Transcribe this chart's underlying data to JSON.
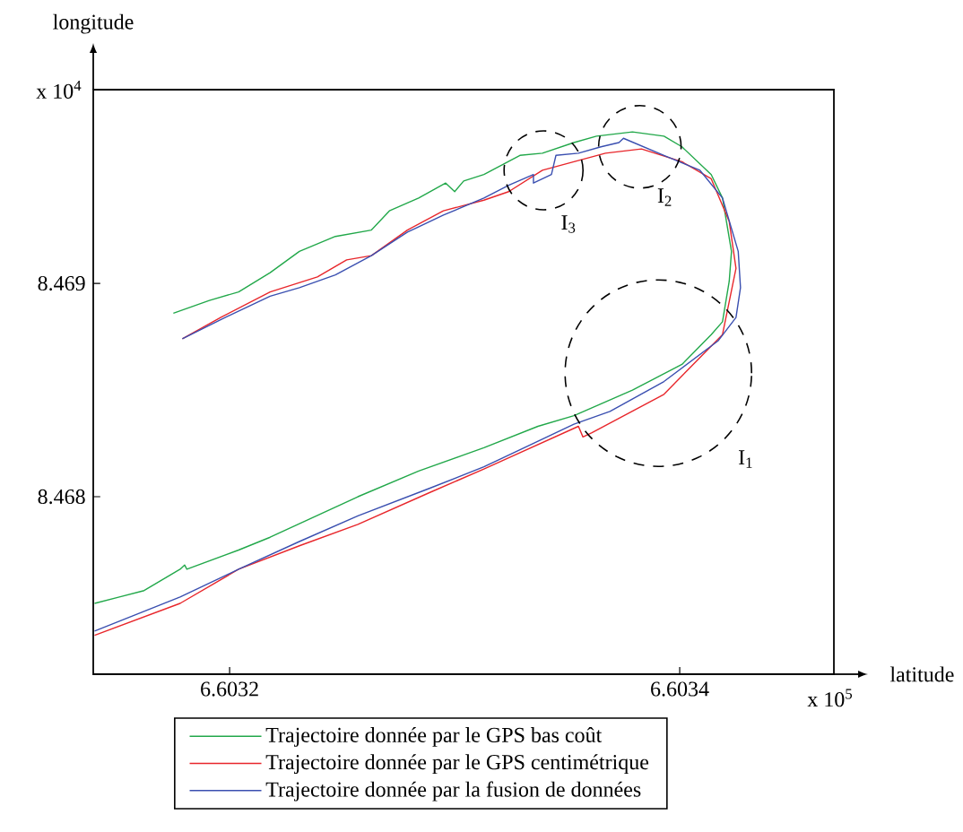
{
  "chart_data": {
    "type": "line",
    "xlabel": "latitude",
    "ylabel": "longitude",
    "xlim": [
      6.6031394,
      6.6034685
    ],
    "ylim": [
      8.467168,
      8.469908
    ],
    "xticks": [
      6.6032,
      6.6034
    ],
    "yticks": [
      8.468,
      8.469
    ],
    "legend": "bottom",
    "annotations": [
      "x 10$^{4}$",
      "x 10$^{5}$",
      "I$_{1}$",
      "I$_{2}$",
      "I$_{3}$"
    ],
    "series": [
      {
        "name": "Trajectoire donnée par le GPS bas coût",
        "color": "#22a84a",
        "x": [
          6.60314,
          6.603151,
          6.603162,
          6.603178,
          6.60318,
          6.603181,
          6.603204,
          6.603218,
          6.603257,
          6.603284,
          6.603313,
          6.603337,
          6.603353,
          6.603379,
          6.603401,
          6.603414,
          6.603419,
          6.603422,
          6.603423,
          6.603419,
          6.603414,
          6.603401,
          6.603393,
          6.603379,
          6.603363,
          6.603353,
          6.603339,
          6.603329,
          6.603313,
          6.603304,
          6.6033,
          6.603296,
          6.603284,
          6.603271,
          6.603263,
          6.603247,
          6.603231,
          6.603218,
          6.603204,
          6.603191,
          6.603175
        ],
        "values": [
          8.4675,
          8.46753,
          8.46756,
          8.46766,
          8.46768,
          8.46766,
          8.46775,
          8.46781,
          8.468,
          8.46812,
          8.46823,
          8.46833,
          8.46838,
          8.4685,
          8.46862,
          8.46876,
          8.46882,
          8.46901,
          8.46915,
          8.4694,
          8.46951,
          8.46964,
          8.46969,
          8.46971,
          8.46969,
          8.46966,
          8.46961,
          8.4696,
          8.46951,
          8.46948,
          8.46943,
          8.46947,
          8.4694,
          8.46934,
          8.46925,
          8.46922,
          8.46915,
          8.46905,
          8.46896,
          8.46892,
          8.46886
        ]
      },
      {
        "name": "Trajectoire donnée par le GPS centimétrique",
        "color": "#e8262b",
        "x": [
          6.60314,
          6.603178,
          6.603204,
          6.603231,
          6.603257,
          6.603289,
          6.603313,
          6.603355,
          6.603357,
          6.603361,
          6.603393,
          6.603419,
          6.603425,
          6.603422,
          6.603414,
          6.603401,
          6.603383,
          6.603367,
          6.603353,
          6.603339,
          6.603324,
          6.603313,
          6.603295,
          6.603279,
          6.603263,
          6.603252,
          6.603239,
          6.603218,
          6.603196,
          6.603179
        ],
        "values": [
          8.46735,
          8.4675,
          8.46766,
          8.46777,
          8.46787,
          8.46802,
          8.46813,
          8.46833,
          8.46828,
          8.4683,
          8.46848,
          8.46876,
          8.46907,
          8.46929,
          8.46949,
          8.46957,
          8.46963,
          8.46961,
          8.46957,
          8.46953,
          8.46943,
          8.46939,
          8.46934,
          8.46925,
          8.46913,
          8.46911,
          8.46903,
          8.46896,
          8.46884,
          8.46874
        ]
      },
      {
        "name": "Trajectoire donnée par la fusion de données",
        "color": "#3a4fb0",
        "x": [
          6.60314,
          6.603178,
          6.603204,
          6.603231,
          6.603257,
          6.603289,
          6.603313,
          6.603353,
          6.603369,
          6.603393,
          6.603417,
          6.603425,
          6.603427,
          6.603426,
          6.603419,
          6.603409,
          6.603393,
          6.603375,
          6.603373,
          6.603365,
          6.603355,
          6.603345,
          6.603343,
          6.603335,
          6.603335,
          6.603324,
          6.603313,
          6.603295,
          6.603279,
          6.603263,
          6.603247,
          6.603231,
          6.603218,
          6.603196,
          6.603179
        ],
        "values": [
          8.46737,
          8.46753,
          8.46766,
          8.46779,
          8.46791,
          8.46804,
          8.46814,
          8.46834,
          8.4684,
          8.46854,
          8.46873,
          8.46884,
          8.46898,
          8.46915,
          8.4694,
          8.46953,
          8.4696,
          8.46968,
          8.46966,
          8.46964,
          8.46961,
          8.4696,
          8.46951,
          8.46947,
          8.46951,
          8.46946,
          8.4694,
          8.46932,
          8.46924,
          8.46913,
          8.46904,
          8.46898,
          8.46894,
          8.46883,
          8.46874
        ]
      }
    ]
  }
}
